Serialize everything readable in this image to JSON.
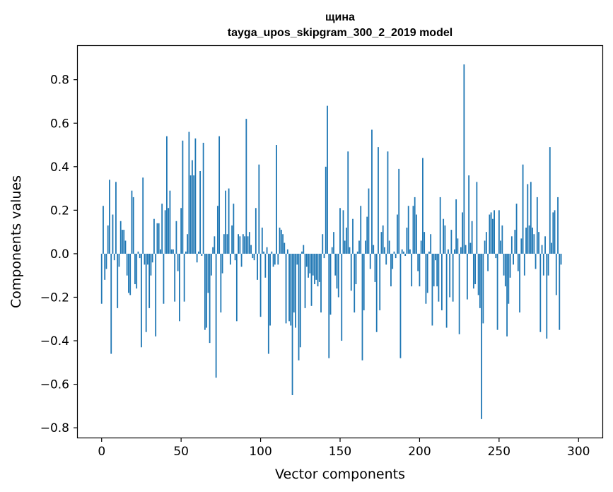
{
  "chart_data": {
    "type": "bar",
    "title_line1": "щина",
    "title_line2": "tayga_upos_skipgram_300_2_2019 model",
    "xlabel": "Vector components",
    "ylabel": "Components values",
    "xlim": [
      -15,
      315
    ],
    "ylim": [
      -0.845,
      0.955
    ],
    "xticks": [
      0,
      50,
      100,
      150,
      200,
      250,
      300
    ],
    "yticks": [
      -0.8,
      -0.6,
      -0.4,
      -0.2,
      0.0,
      0.2,
      0.4,
      0.6,
      0.8
    ],
    "ytick_labels": [
      "−0.8",
      "−0.6",
      "−0.4",
      "−0.2",
      "0.0",
      "0.2",
      "0.4",
      "0.6",
      "0.8"
    ],
    "bar_color": "#1f77b4",
    "values": [
      -0.23,
      0.22,
      -0.12,
      -0.07,
      0.13,
      0.34,
      -0.46,
      0.18,
      -0.03,
      0.33,
      -0.25,
      -0.06,
      0.15,
      0.11,
      0.11,
      0.06,
      -0.1,
      -0.18,
      -0.19,
      0.29,
      0.26,
      -0.14,
      -0.16,
      0.01,
      -0.02,
      -0.43,
      0.35,
      -0.05,
      -0.36,
      -0.05,
      -0.25,
      -0.1,
      -0.04,
      0.16,
      -0.38,
      0.14,
      0.14,
      0.02,
      0.23,
      -0.23,
      0.2,
      0.54,
      0.21,
      0.29,
      0.02,
      0.02,
      -0.22,
      0.15,
      -0.08,
      -0.31,
      0.21,
      0.52,
      -0.22,
      0.01,
      0.09,
      0.56,
      0.36,
      0.43,
      0.36,
      0.53,
      -0.04,
      0.01,
      0.38,
      -0.01,
      0.51,
      -0.35,
      -0.34,
      -0.18,
      -0.41,
      -0.1,
      0.03,
      0.08,
      -0.57,
      0.22,
      0.54,
      -0.27,
      -0.09,
      0.09,
      0.29,
      0.09,
      0.3,
      -0.05,
      0.13,
      0.23,
      -0.03,
      -0.31,
      0.09,
      0.08,
      -0.06,
      0.09,
      0.08,
      0.62,
      0.08,
      0.1,
      0.04,
      -0.02,
      -0.03,
      0.21,
      -0.12,
      0.41,
      -0.29,
      0.12,
      0.01,
      -0.11,
      0.03,
      -0.46,
      -0.33,
      0.01,
      -0.06,
      -0.05,
      0.5,
      -0.05,
      0.12,
      0.11,
      0.09,
      0.05,
      -0.32,
      0.02,
      -0.31,
      -0.33,
      -0.65,
      -0.27,
      -0.34,
      -0.05,
      -0.49,
      -0.43,
      0.01,
      0.04,
      -0.25,
      -0.06,
      -0.11,
      -0.09,
      -0.24,
      -0.1,
      -0.14,
      -0.12,
      -0.15,
      -0.13,
      -0.27,
      0.09,
      -0.02,
      0.4,
      0.68,
      -0.48,
      -0.28,
      0.03,
      0.1,
      -0.1,
      -0.16,
      -0.2,
      0.21,
      -0.4,
      0.2,
      0.06,
      0.12,
      0.47,
      0.03,
      -0.17,
      0.16,
      -0.27,
      -0.14,
      0.01,
      0.06,
      0.22,
      -0.49,
      -0.26,
      0.06,
      0.17,
      0.3,
      -0.07,
      0.57,
      0.04,
      -0.13,
      -0.36,
      0.49,
      -0.26,
      0.1,
      0.13,
      0.03,
      -0.05,
      0.47,
      0.06,
      -0.15,
      -0.07,
      0.01,
      -0.02,
      0.18,
      0.39,
      -0.48,
      0.02,
      0.01,
      -0.01,
      0.12,
      0.22,
      0.02,
      -0.15,
      0.22,
      0.26,
      0.18,
      -0.08,
      -0.15,
      0.06,
      0.44,
      0.1,
      -0.23,
      -0.18,
      0.01,
      0.09,
      -0.33,
      -0.15,
      -0.03,
      -0.15,
      -0.22,
      0.26,
      -0.26,
      0.16,
      0.13,
      -0.34,
      0.02,
      -0.2,
      0.11,
      -0.22,
      0.02,
      0.25,
      0.07,
      -0.37,
      0.03,
      0.19,
      0.87,
      0.04,
      -0.21,
      0.36,
      0.05,
      0.15,
      -0.16,
      -0.14,
      0.33,
      -0.19,
      -0.25,
      -0.76,
      -0.32,
      0.06,
      0.1,
      -0.08,
      0.18,
      0.19,
      0.16,
      0.2,
      -0.02,
      -0.35,
      0.2,
      0.06,
      0.13,
      -0.1,
      -0.15,
      -0.38,
      -0.23,
      -0.11,
      0.08,
      -0.05,
      0.11,
      0.23,
      -0.08,
      -0.27,
      0.07,
      0.41,
      -0.1,
      0.12,
      0.32,
      0.13,
      0.33,
      0.12,
      0.09,
      -0.07,
      0.26,
      0.1,
      -0.36,
      0.04,
      -0.1,
      0.08,
      -0.39,
      -0.1,
      0.49,
      0.05,
      0.19,
      0.2,
      -0.19,
      0.26,
      -0.35,
      -0.05
    ]
  }
}
